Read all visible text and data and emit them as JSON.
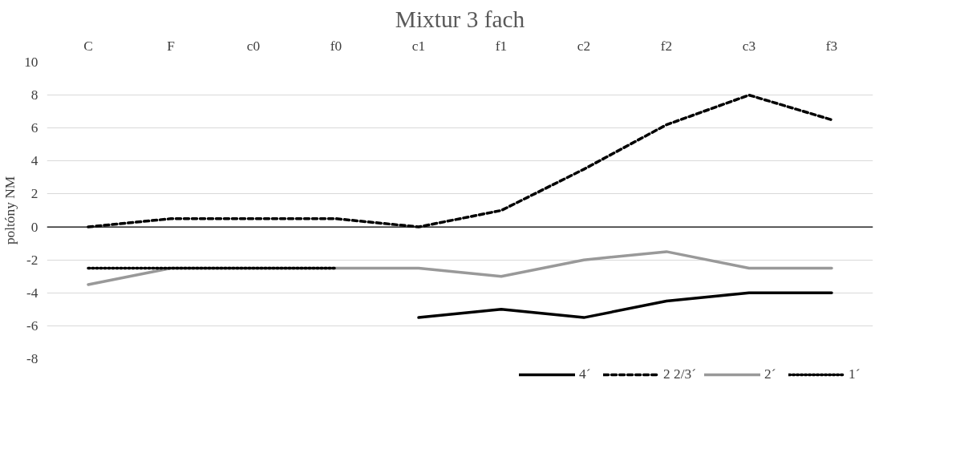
{
  "chart_data": {
    "type": "line",
    "title": "Mixtur 3 fach",
    "ylabel": "poltóny NM",
    "categories": [
      "C",
      "F",
      "c0",
      "f0",
      "c1",
      "f1",
      "c2",
      "f2",
      "c3",
      "f3"
    ],
    "series": [
      {
        "name": "4´",
        "color": "#000000",
        "line_style": "solid",
        "values": [
          null,
          null,
          null,
          null,
          -5.5,
          -5,
          -5.5,
          -4.5,
          -4,
          -4
        ]
      },
      {
        "name": "2 2/3´",
        "color": "#000000",
        "line_style": "dashed",
        "values": [
          0,
          0.5,
          0.5,
          0.5,
          0,
          1,
          3.5,
          6.2,
          8,
          6.5
        ]
      },
      {
        "name": "2´",
        "color": "#999999",
        "line_style": "solid",
        "values": [
          -3.5,
          -2.5,
          -2.5,
          -2.5,
          -2.5,
          -3,
          -2,
          -1.5,
          -2.5,
          -2.5
        ]
      },
      {
        "name": "1´",
        "color": "#000000",
        "line_style": "dotted",
        "values": [
          -2.5,
          -2.5,
          -2.5,
          -2.5,
          null,
          null,
          null,
          null,
          null,
          null
        ]
      }
    ],
    "ylim": [
      -8,
      10
    ],
    "yticks": [
      -8,
      -6,
      -4,
      -2,
      0,
      2,
      4,
      6,
      8,
      10
    ],
    "ref_lines": [
      {
        "axis": "y",
        "value": 0,
        "color": "#000000"
      }
    ],
    "grid": "y",
    "legend": "bottom",
    "marker": "none"
  }
}
